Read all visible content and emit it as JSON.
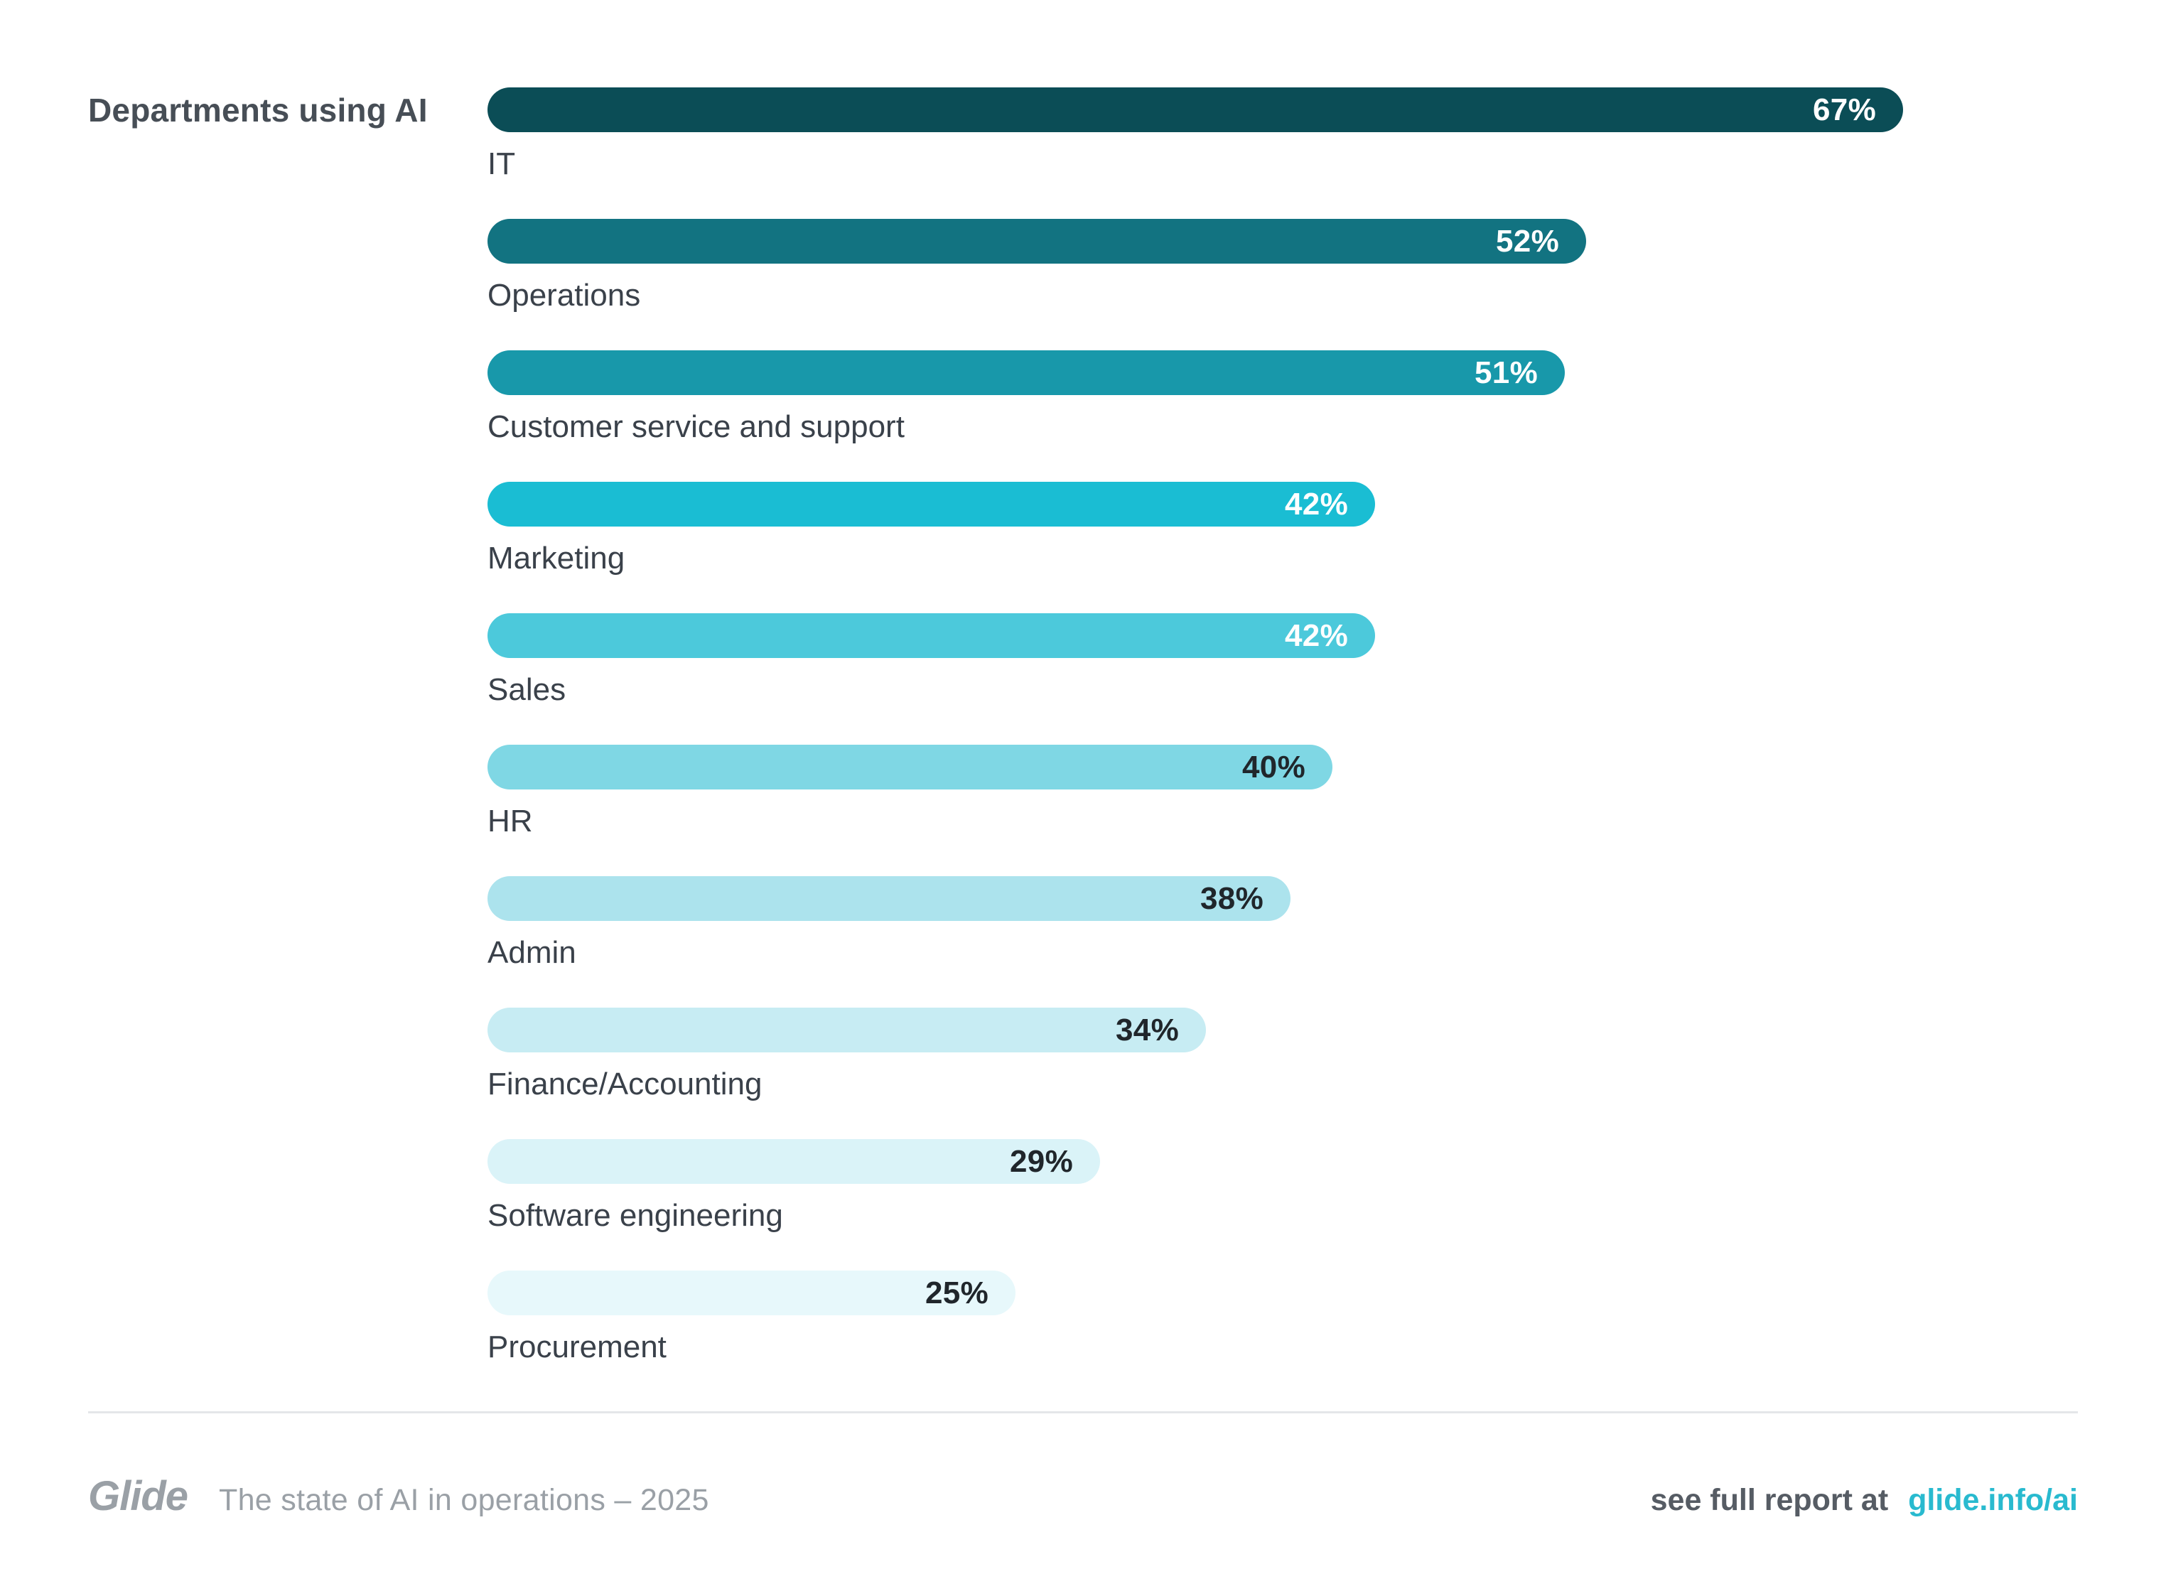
{
  "chart": {
    "title": "Departments using AI"
  },
  "chart_data": {
    "type": "bar",
    "orientation": "horizontal",
    "title": "Departments using AI",
    "unit": "%",
    "xlim": [
      0,
      67
    ],
    "grid": false,
    "legend": false,
    "categories": [
      "IT",
      "Operations",
      "Customer service and support",
      "Marketing",
      "Sales",
      "HR",
      "Admin",
      "Finance/Accounting",
      "Software engineering",
      "Procurement"
    ],
    "values": [
      67,
      52,
      51,
      42,
      42,
      40,
      38,
      34,
      29,
      25
    ],
    "value_labels": [
      "67%",
      "52%",
      "51%",
      "42%",
      "42%",
      "40%",
      "38%",
      "34%",
      "29%",
      "25%"
    ],
    "bar_colors": [
      "#0b4d56",
      "#127381",
      "#1898aa",
      "#1abdd3",
      "#4cc9db",
      "#7fd7e4",
      "#ace3ed",
      "#c7ecf3",
      "#daf3f8",
      "#e7f8fb"
    ],
    "value_label_colors": [
      "#ffffff",
      "#ffffff",
      "#ffffff",
      "#ffffff",
      "#ffffff",
      "#20262b",
      "#20262b",
      "#20262b",
      "#20262b",
      "#20262b"
    ]
  },
  "footer": {
    "logo": "Glide",
    "tagline": "The state of AI in operations – 2025",
    "cta_text": "see full report at",
    "link_text": "glide.info/ai",
    "link_color": "#29bacf"
  }
}
